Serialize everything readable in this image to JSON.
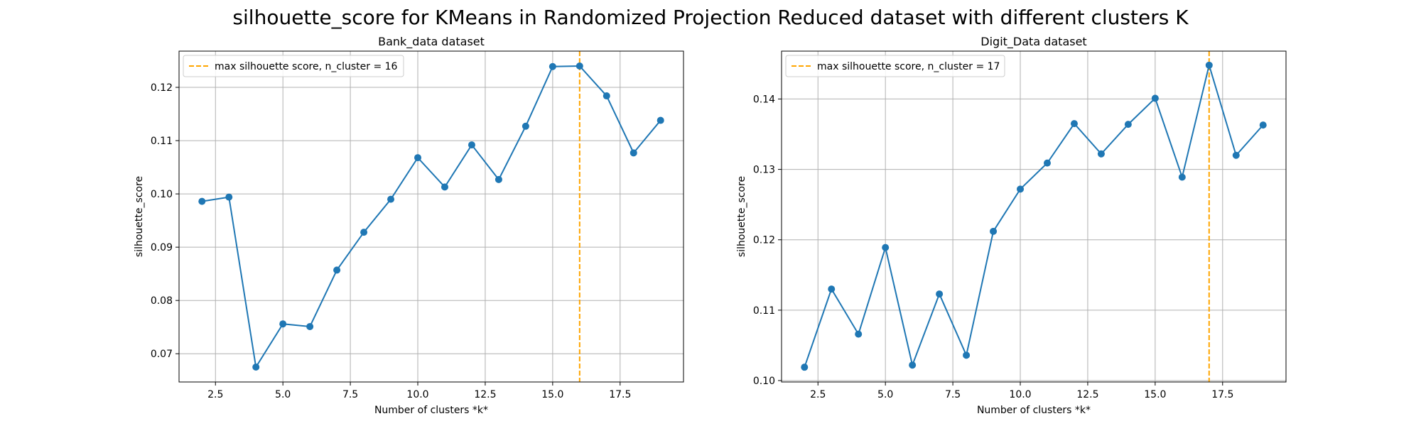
{
  "figure": {
    "suptitle": "silhouette_score for KMeans in Randomized Projection Reduced dataset with different clusters K"
  },
  "chart_data": [
    {
      "type": "line",
      "title": "Bank_data dataset",
      "xlabel": "Number of clusters *k*",
      "ylabel": "silhouette_score",
      "x": [
        2,
        3,
        4,
        5,
        6,
        7,
        8,
        9,
        10,
        11,
        12,
        13,
        14,
        15,
        16,
        17,
        18,
        19
      ],
      "series": [
        {
          "values": [
            0.0986,
            0.0994,
            0.0675,
            0.0756,
            0.0751,
            0.0857,
            0.0928,
            0.099,
            0.1068,
            0.1013,
            0.1092,
            0.1027,
            0.1127,
            0.1239,
            0.124,
            0.1184,
            0.1077,
            0.1138
          ],
          "color": "#1f77b4"
        }
      ],
      "vline": {
        "x": 16,
        "color": "#ffa500",
        "label": "max silhouette score, n_cluster = 16"
      },
      "xlim": [
        1.15,
        19.85
      ],
      "ylim": [
        0.0647,
        0.1268
      ],
      "xticks": [
        2.5,
        5.0,
        7.5,
        10.0,
        12.5,
        15.0,
        17.5
      ],
      "xtick_labels": [
        "2.5",
        "5.0",
        "7.5",
        "10.0",
        "12.5",
        "15.0",
        "17.5"
      ],
      "yticks": [
        0.07,
        0.08,
        0.09,
        0.1,
        0.11,
        0.12
      ],
      "ytick_labels": [
        "0.07",
        "0.08",
        "0.09",
        "0.10",
        "0.11",
        "0.12"
      ],
      "grid": true,
      "legend": "upper-left"
    },
    {
      "type": "line",
      "title": "Digit_Data dataset",
      "xlabel": "Number of clusters *k*",
      "ylabel": "silhouette_score",
      "x": [
        2,
        3,
        4,
        5,
        6,
        7,
        8,
        9,
        10,
        11,
        12,
        13,
        14,
        15,
        16,
        17,
        18,
        19
      ],
      "series": [
        {
          "values": [
            0.1019,
            0.113,
            0.1066,
            0.1189,
            0.1022,
            0.1123,
            0.1036,
            0.1212,
            0.1272,
            0.1309,
            0.1365,
            0.1322,
            0.1364,
            0.1401,
            0.1289,
            0.1448,
            0.132,
            0.1363
          ],
          "color": "#1f77b4"
        }
      ],
      "vline": {
        "x": 17,
        "color": "#ffa500",
        "label": "max silhouette score, n_cluster = 17"
      },
      "xlim": [
        1.15,
        19.85
      ],
      "ylim": [
        0.0998,
        0.1468
      ],
      "xticks": [
        2.5,
        5.0,
        7.5,
        10.0,
        12.5,
        15.0,
        17.5
      ],
      "xtick_labels": [
        "2.5",
        "5.0",
        "7.5",
        "10.0",
        "12.5",
        "15.0",
        "17.5"
      ],
      "yticks": [
        0.1,
        0.11,
        0.12,
        0.13,
        0.14
      ],
      "ytick_labels": [
        "0.10",
        "0.11",
        "0.12",
        "0.13",
        "0.14"
      ],
      "grid": true,
      "legend": "upper-left"
    }
  ]
}
